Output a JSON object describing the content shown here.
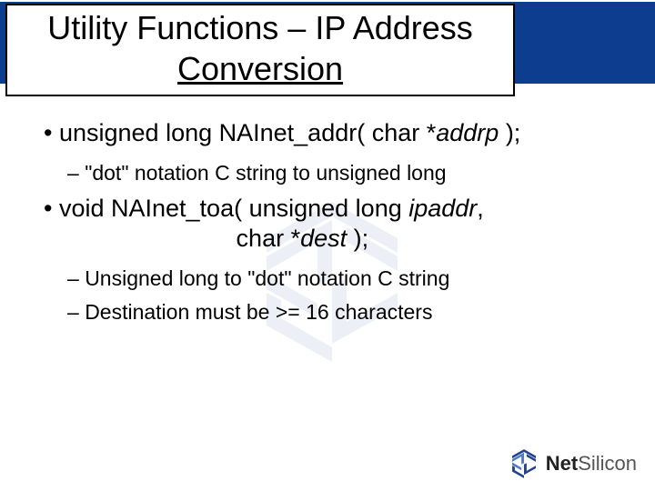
{
  "colors": {
    "header_bar": "#0c3d8f",
    "title_border": "#000000",
    "title_bg": "#ffffff",
    "text": "#000000",
    "logo_text_dark": "#222222",
    "logo_text_light": "#555555",
    "watermark_fill": "#20438c",
    "logo_fill": "#20438c",
    "logo_highlight": "#4f7bc6"
  },
  "title": {
    "line1": "Utility Functions – IP Address",
    "line2": "Conversion",
    "fontsize": 36
  },
  "body": {
    "items": [
      {
        "level": 1,
        "segments": [
          {
            "t": "unsigned long NAInet_addr( char *"
          },
          {
            "t": "addrp",
            "italic": true
          },
          {
            "t": " );"
          }
        ]
      },
      {
        "level": 2,
        "segments": [
          {
            "t": "\"dot\" notation C string to unsigned long"
          }
        ]
      },
      {
        "level": 1,
        "segments": [
          {
            "t": "void NAInet_toa( unsigned long "
          },
          {
            "t": "ipaddr",
            "italic": true
          },
          {
            "t": ",\n                         char *"
          },
          {
            "t": "dest",
            "italic": true
          },
          {
            "t": " );"
          }
        ]
      },
      {
        "level": 2,
        "segments": [
          {
            "t": "Unsigned long to \"dot\" notation C string"
          }
        ]
      },
      {
        "level": 2,
        "segments": [
          {
            "t": "Destination must be >= 16 characters"
          }
        ]
      }
    ],
    "fontsize_l1": 27,
    "fontsize_l2": 23
  },
  "logo": {
    "name": "NetSilicon",
    "part1": "Net",
    "part2": "Silicon"
  }
}
